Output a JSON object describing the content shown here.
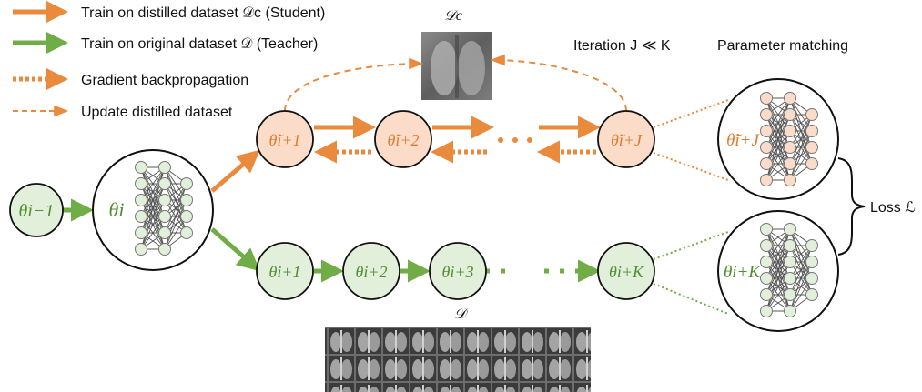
{
  "colors": {
    "orange": "#e98a3d",
    "orange_fill": "#fbdcc9",
    "orange_text": "#e07b2e",
    "green": "#70ad47",
    "green_fill": "#e2efda",
    "green_text": "#4f8f2f"
  },
  "legend": {
    "student": "Train on distilled dataset 𝒟c (Student)",
    "teacher": "Train on original dataset 𝒟 (Teacher)",
    "backprop": "Gradient backpropagation",
    "update": "Update distilled dataset"
  },
  "labels": {
    "distilled_dataset": "𝒟c",
    "original_dataset": "𝒟",
    "iteration": "Iteration J ≪ K",
    "parameter_matching": "Parameter matching",
    "loss": "Loss ℒ"
  },
  "nodes": {
    "theta_prev": "θi−1",
    "theta_i": "θi",
    "student": [
      "θ̃i+1",
      "θ̃i+2",
      "θ̃i+J"
    ],
    "teacher": [
      "θi+1",
      "θi+2",
      "θi+3",
      "θi+K"
    ],
    "student_net": "θ̃i+J",
    "teacher_net": "θi+K"
  },
  "icons": {
    "ellipsis": "dots-ellipsis-icon",
    "network": "neural-network-icon",
    "brace": "right-curly-brace-icon"
  }
}
